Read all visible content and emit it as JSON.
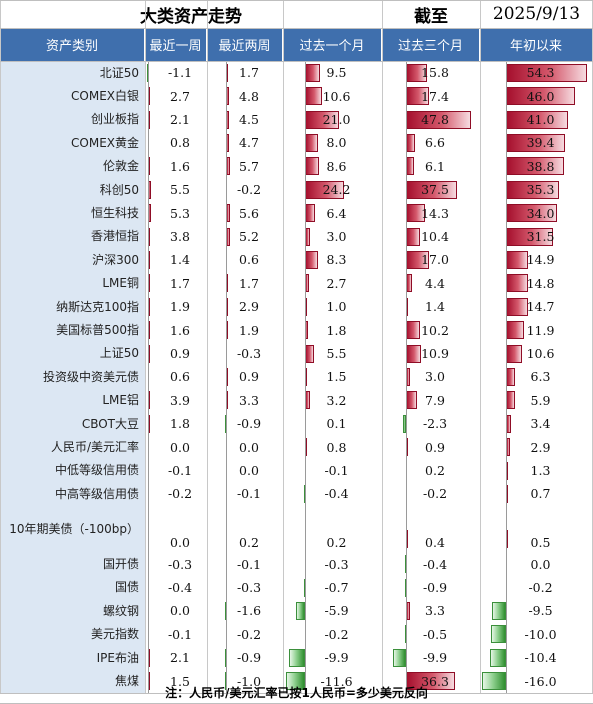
{
  "title": "大类资产走势",
  "asof_label": "截至",
  "asof_date": "2025/9/13",
  "columns": [
    "资产类别",
    "最近一周",
    "最近两周",
    "过去一个月",
    "过去三个月",
    "年初以来"
  ],
  "footnote": "注：人民币/美元汇率已按1人民币=多少美元反向",
  "colors": {
    "header_bg": "#3f6fad",
    "name_bg": "#dce7f3",
    "positive": "#c0283f",
    "negative": "#5cb85c"
  },
  "chart_data": {
    "type": "table",
    "title": "大类资产走势",
    "categories": [
      "北证50",
      "COMEX白银",
      "创业板指",
      "COMEX黄金",
      "伦敦金",
      "科创50",
      "恒生科技",
      "香港恒指",
      "沪深300",
      "LME铜",
      "纳斯达克100指",
      "美国标普500指",
      "上证50",
      "投资级中资美元债",
      "LME铝",
      "CBOT大豆",
      "人民币/美元汇率",
      "中低等级信用债",
      "中高等级信用债",
      "10年期美债（-100bp）",
      "国开债",
      "国债",
      "螺纹钢",
      "美元指数",
      "IPE布油",
      "焦煤"
    ],
    "series": [
      {
        "name": "最近一周",
        "values": [
          -1.1,
          2.7,
          2.1,
          0.8,
          1.6,
          5.5,
          5.3,
          3.8,
          1.4,
          1.7,
          1.9,
          1.6,
          0.9,
          0.6,
          3.9,
          1.8,
          0.0,
          -0.1,
          -0.2,
          0.0,
          -0.3,
          -0.4,
          0.0,
          -0.1,
          2.1,
          1.5
        ]
      },
      {
        "name": "最近两周",
        "values": [
          1.7,
          4.8,
          4.5,
          4.7,
          5.7,
          -0.2,
          5.6,
          5.2,
          0.6,
          1.7,
          2.9,
          1.9,
          -0.3,
          0.9,
          3.3,
          -0.9,
          0.0,
          0.0,
          -0.1,
          0.2,
          -0.1,
          -0.3,
          -1.6,
          -0.2,
          -0.9,
          -1.0
        ]
      },
      {
        "name": "过去一个月",
        "values": [
          9.5,
          10.6,
          21.0,
          8.0,
          8.6,
          24.2,
          6.4,
          3.0,
          8.3,
          2.7,
          1.0,
          1.8,
          5.5,
          1.5,
          3.2,
          0.1,
          0.8,
          -0.1,
          -0.4,
          0.2,
          -0.3,
          -0.7,
          -5.9,
          -0.2,
          -9.9,
          -11.6
        ]
      },
      {
        "name": "过去三个月",
        "values": [
          15.8,
          17.4,
          47.8,
          6.6,
          6.1,
          37.5,
          14.3,
          10.4,
          17.0,
          4.4,
          1.4,
          10.2,
          10.9,
          3.0,
          7.9,
          -2.3,
          0.9,
          0.2,
          -0.2,
          0.4,
          -0.4,
          -0.9,
          3.3,
          -0.5,
          -9.9,
          36.3
        ]
      },
      {
        "name": "年初以来",
        "values": [
          54.3,
          46.0,
          41.0,
          39.4,
          38.8,
          35.3,
          34.0,
          31.5,
          14.9,
          14.8,
          14.7,
          11.9,
          10.6,
          6.3,
          5.9,
          3.4,
          2.9,
          1.3,
          0.7,
          0.5,
          0.0,
          -0.2,
          -9.5,
          -10.0,
          -10.4,
          -16.0
        ]
      }
    ]
  }
}
